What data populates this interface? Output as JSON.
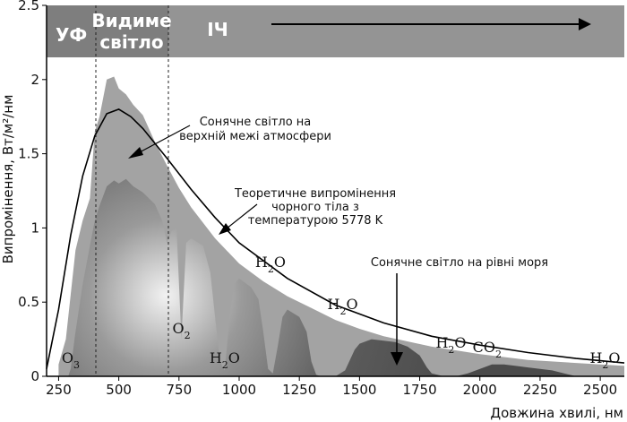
{
  "chart_data": {
    "type": "area",
    "xlabel": "Довжина хвилі, нм",
    "ylabel": "Випромінення, Вт/м²/нм",
    "xlim": [
      200,
      2600
    ],
    "ylim": [
      0,
      2.5
    ],
    "x_ticks": [
      "250",
      "500",
      "750",
      "1000",
      "1250",
      "1500",
      "1750",
      "2000",
      "2250",
      "2500"
    ],
    "y_ticks": [
      "0",
      "0.5",
      "1",
      "1.5",
      "2",
      "2.5"
    ],
    "bands": [
      "УФ",
      "Видиме світло",
      "ІЧ"
    ],
    "band_boundaries": [
      380,
      690
    ],
    "annotations": {
      "top_atmosphere": "Сонячне світло на верхній межі атмосфери",
      "blackbody": "Теоретичне випромінення чорного тіла з температурою 5778 K",
      "sea_level": "Сонячне світло на рівні моря"
    },
    "absorption_labels": [
      {
        "base": "O",
        "sub": "3",
        "x": 300
      },
      {
        "base": "O",
        "sub": "2",
        "x": 760
      },
      {
        "base": "H",
        "sub": "2",
        "post": "O",
        "x": 940
      },
      {
        "base": "H",
        "sub": "2",
        "post": "O",
        "x": 1130
      },
      {
        "base": "H",
        "sub": "2",
        "post": "O",
        "x": 1430
      },
      {
        "base": "H",
        "sub": "2",
        "post": "O",
        "x": 1880
      },
      {
        "base": "CO",
        "sub": "2",
        "x": 2030
      },
      {
        "base": "H",
        "sub": "2",
        "post": "O",
        "x": 2520
      }
    ],
    "series": [
      {
        "kind": "blackbody",
        "x": [
          200,
          250,
          300,
          350,
          400,
          450,
          500,
          550,
          600,
          700,
          800,
          900,
          1000,
          1200,
          1400,
          1600,
          1800,
          2000,
          2200,
          2400,
          2600
        ],
        "values": [
          0.05,
          0.45,
          0.95,
          1.35,
          1.62,
          1.77,
          1.8,
          1.75,
          1.67,
          1.47,
          1.26,
          1.07,
          0.9,
          0.66,
          0.48,
          0.36,
          0.27,
          0.21,
          0.16,
          0.12,
          0.09
        ]
      },
      {
        "kind": "top_of_atmosphere",
        "x": [
          250,
          280,
          300,
          320,
          350,
          380,
          400,
          420,
          450,
          480,
          500,
          530,
          560,
          600,
          650,
          700,
          750,
          800,
          900,
          1000,
          1100,
          1200,
          1300,
          1400,
          1500,
          1600,
          1800,
          2000,
          2200,
          2400,
          2600
        ],
        "values": [
          0.08,
          0.25,
          0.55,
          0.85,
          1.05,
          1.2,
          1.65,
          1.75,
          2.0,
          2.02,
          1.94,
          1.9,
          1.83,
          1.76,
          1.58,
          1.42,
          1.27,
          1.14,
          0.93,
          0.76,
          0.64,
          0.54,
          0.46,
          0.38,
          0.32,
          0.27,
          0.2,
          0.15,
          0.11,
          0.09,
          0.07
        ]
      },
      {
        "kind": "sea_level",
        "x": [
          290,
          300,
          320,
          350,
          380,
          400,
          420,
          450,
          480,
          500,
          530,
          560,
          600,
          650,
          680,
          700,
          720,
          740,
          760,
          780,
          800,
          850,
          880,
          900,
          920,
          940,
          960,
          980,
          1000,
          1050,
          1080,
          1100,
          1120,
          1140,
          1160,
          1180,
          1200,
          1250,
          1280,
          1300,
          1320,
          1340,
          1360,
          1400,
          1440,
          1480,
          1500,
          1550,
          1600,
          1650,
          1700,
          1750,
          1780,
          1800,
          1850,
          1900,
          1950,
          2000,
          2050,
          2100,
          2150,
          2200,
          2250,
          2300,
          2350,
          2400,
          2450,
          2500,
          2600
        ],
        "values": [
          0.0,
          0.05,
          0.3,
          0.62,
          0.88,
          1.05,
          1.15,
          1.28,
          1.32,
          1.3,
          1.33,
          1.28,
          1.24,
          1.16,
          1.05,
          0.9,
          0.98,
          1.0,
          0.25,
          0.9,
          0.93,
          0.88,
          0.7,
          0.4,
          0.1,
          0.04,
          0.4,
          0.62,
          0.66,
          0.6,
          0.52,
          0.3,
          0.05,
          0.02,
          0.2,
          0.4,
          0.45,
          0.4,
          0.3,
          0.1,
          0.01,
          0.0,
          0.0,
          0.0,
          0.04,
          0.18,
          0.22,
          0.25,
          0.24,
          0.23,
          0.2,
          0.14,
          0.06,
          0.02,
          0.0,
          0.0,
          0.02,
          0.05,
          0.08,
          0.08,
          0.07,
          0.06,
          0.05,
          0.04,
          0.02,
          0.0,
          0.0,
          0.0,
          0.0
        ]
      }
    ]
  }
}
